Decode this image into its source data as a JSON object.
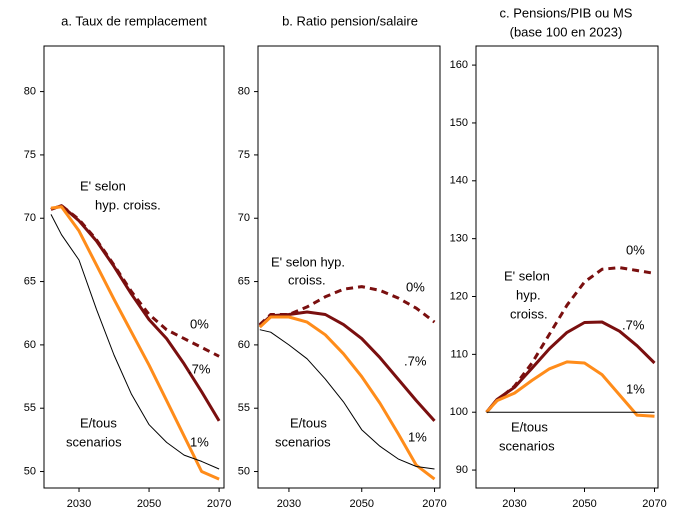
{
  "chart_data": [
    {
      "type": "line",
      "title": [
        "a. Taux de remplacement"
      ],
      "x": [
        2022,
        2025,
        2030,
        2035,
        2040,
        2045,
        2050,
        2055,
        2060,
        2065,
        2070
      ],
      "xlim": [
        2020,
        2071.4
      ],
      "xticks": [
        2030,
        2050,
        2070
      ],
      "ylim": [
        48.7,
        83.6
      ],
      "yticks": [
        50,
        55,
        60,
        65,
        70,
        75,
        80
      ],
      "grid": false,
      "series": [
        {
          "name": "0%",
          "color": "#7a0f0f",
          "style": "dashed",
          "linewidth": 3,
          "values": [
            70.7,
            71.0,
            69.9,
            68.3,
            66.3,
            64.2,
            62.4,
            61.2,
            60.5,
            59.8,
            59.1
          ]
        },
        {
          "name": ".7%",
          "color": "#7a0f0f",
          "style": "solid",
          "linewidth": 3,
          "values": [
            70.7,
            71.0,
            69.8,
            68.2,
            66.2,
            64.0,
            62.0,
            60.5,
            58.5,
            56.3,
            54.0
          ]
        },
        {
          "name": "1%",
          "color": "#ff8c1a",
          "style": "solid",
          "linewidth": 3,
          "values": [
            70.8,
            70.9,
            69.0,
            66.3,
            63.6,
            61.0,
            58.4,
            55.6,
            52.8,
            50.0,
            49.4
          ]
        },
        {
          "color": "#000000",
          "style": "solid",
          "linewidth": 1,
          "values": [
            70.3,
            68.7,
            66.7,
            62.8,
            59.2,
            56.1,
            53.7,
            52.3,
            51.3,
            50.8,
            50.2
          ]
        }
      ],
      "annotations": [
        [
          "E' selon",
          "hyp. croiss."
        ],
        [
          "E/tous",
          "scenarios"
        ]
      ]
    },
    {
      "type": "line",
      "title": [
        "b. Ratio pension/salaire"
      ],
      "x": [
        2022,
        2025,
        2030,
        2035,
        2040,
        2045,
        2050,
        2055,
        2060,
        2065,
        2070
      ],
      "xlim": [
        2021.5,
        2071.5
      ],
      "xticks": [
        2030,
        2050,
        2070
      ],
      "ylim": [
        48.7,
        83.6
      ],
      "yticks": [
        50,
        55,
        60,
        65,
        70,
        75,
        80
      ],
      "grid": false,
      "series": [
        {
          "name": "0%",
          "color": "#7a0f0f",
          "style": "dashed",
          "linewidth": 3,
          "values": [
            61.6,
            62.4,
            62.4,
            63.0,
            63.8,
            64.4,
            64.6,
            64.3,
            63.7,
            62.9,
            61.8
          ]
        },
        {
          "name": ".7%",
          "color": "#7a0f0f",
          "style": "solid",
          "linewidth": 3,
          "values": [
            61.5,
            62.3,
            62.4,
            62.6,
            62.4,
            61.6,
            60.5,
            59.0,
            57.3,
            55.6,
            54.0
          ]
        },
        {
          "name": "1%",
          "color": "#ff8c1a",
          "style": "solid",
          "linewidth": 3,
          "values": [
            61.4,
            62.2,
            62.2,
            61.8,
            60.8,
            59.3,
            57.5,
            55.4,
            53.0,
            50.5,
            49.4
          ]
        },
        {
          "color": "#000000",
          "style": "solid",
          "linewidth": 1,
          "values": [
            61.2,
            61.0,
            60.0,
            58.9,
            57.3,
            55.5,
            53.3,
            52.0,
            51.0,
            50.4,
            50.2
          ]
        }
      ],
      "annotations": [
        [
          "E' selon hyp.",
          "croiss."
        ],
        [
          "E/tous",
          "scenarios"
        ]
      ]
    },
    {
      "type": "line",
      "title": [
        "c. Pensions/PIB ou MS",
        "(base 100 en 2023)"
      ],
      "x": [
        2022,
        2025,
        2030,
        2035,
        2040,
        2045,
        2050,
        2055,
        2060,
        2065,
        2070
      ],
      "xlim": [
        2019,
        2071
      ],
      "xticks": [
        2030,
        2050,
        2070
      ],
      "ylim": [
        86.9,
        163.3
      ],
      "yticks": [
        90,
        100,
        110,
        120,
        130,
        140,
        150,
        160
      ],
      "grid": false,
      "series": [
        {
          "name": "0%",
          "color": "#7a0f0f",
          "style": "dashed",
          "linewidth": 3,
          "values": [
            100,
            102,
            104.5,
            108.5,
            113.5,
            118.5,
            122.5,
            124.7,
            125.0,
            124.5,
            124.0
          ]
        },
        {
          "name": ".7%",
          "color": "#7a0f0f",
          "style": "solid",
          "linewidth": 3,
          "values": [
            100,
            102.2,
            104.3,
            107.6,
            111,
            113.8,
            115.5,
            115.6,
            114,
            111.5,
            108.5
          ]
        },
        {
          "name": "1%",
          "color": "#ff8c1a",
          "style": "solid",
          "linewidth": 3,
          "values": [
            100,
            102,
            103.3,
            105.5,
            107.5,
            108.7,
            108.5,
            106.5,
            103,
            99.5,
            99.3
          ]
        },
        {
          "color": "#000000",
          "style": "solid",
          "linewidth": 1,
          "values": [
            100,
            100,
            100,
            100,
            100,
            100,
            100,
            100,
            100,
            100,
            100
          ]
        }
      ],
      "annotations": [
        [
          "E' selon",
          "hyp.",
          "croiss."
        ],
        [
          "E/tous",
          "scenarios"
        ]
      ]
    }
  ]
}
